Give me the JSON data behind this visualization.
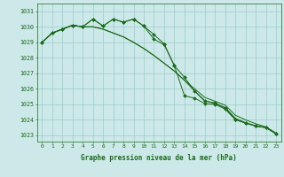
{
  "x": [
    0,
    1,
    2,
    3,
    4,
    5,
    6,
    7,
    8,
    9,
    10,
    11,
    12,
    13,
    14,
    15,
    16,
    17,
    18,
    19,
    20,
    21,
    22,
    23
  ],
  "line1": [
    1029.0,
    1029.6,
    1029.85,
    1030.1,
    1030.0,
    1030.5,
    1030.05,
    1030.5,
    1030.3,
    1030.5,
    1030.05,
    1029.5,
    1028.9,
    1027.5,
    1026.75,
    1025.85,
    1025.2,
    1025.1,
    1024.75,
    1024.05,
    1023.8,
    1023.6,
    1023.5,
    1023.1
  ],
  "line2": [
    1029.0,
    1029.6,
    1029.85,
    1030.1,
    1030.0,
    1030.0,
    1029.85,
    1029.6,
    1029.35,
    1029.0,
    1028.6,
    1028.15,
    1027.65,
    1027.15,
    1026.55,
    1026.0,
    1025.45,
    1025.2,
    1024.95,
    1024.3,
    1024.0,
    1023.75,
    1023.55,
    1023.15
  ],
  "line3": [
    1029.0,
    1029.6,
    1029.85,
    1030.1,
    1030.0,
    1030.0,
    1029.85,
    1029.6,
    1029.35,
    1029.0,
    1028.6,
    1028.15,
    1027.65,
    1027.15,
    1026.55,
    1025.85,
    1025.25,
    1025.05,
    1024.8,
    1024.1,
    1023.82,
    1023.62,
    1023.52,
    1023.12
  ],
  "line4": [
    1029.0,
    1029.6,
    1029.85,
    1030.1,
    1030.0,
    1030.5,
    1030.05,
    1030.5,
    1030.3,
    1030.5,
    1030.05,
    1029.2,
    1028.85,
    1027.5,
    1025.55,
    1025.4,
    1025.05,
    1025.0,
    1024.7,
    1024.0,
    1023.8,
    1023.6,
    1023.5,
    1023.1
  ],
  "bg_color": "#cce8e8",
  "grid_color": "#99cccc",
  "line_color": "#1a6b1a",
  "xlabel": "Graphe pression niveau de la mer (hPa)",
  "ylim_min": 1022.6,
  "ylim_max": 1031.5,
  "xlim_min": -0.5,
  "xlim_max": 23.5,
  "yticks": [
    1023,
    1024,
    1025,
    1026,
    1027,
    1028,
    1029,
    1030,
    1031
  ],
  "xticks": [
    0,
    1,
    2,
    3,
    4,
    5,
    6,
    7,
    8,
    9,
    10,
    11,
    12,
    13,
    14,
    15,
    16,
    17,
    18,
    19,
    20,
    21,
    22,
    23
  ]
}
